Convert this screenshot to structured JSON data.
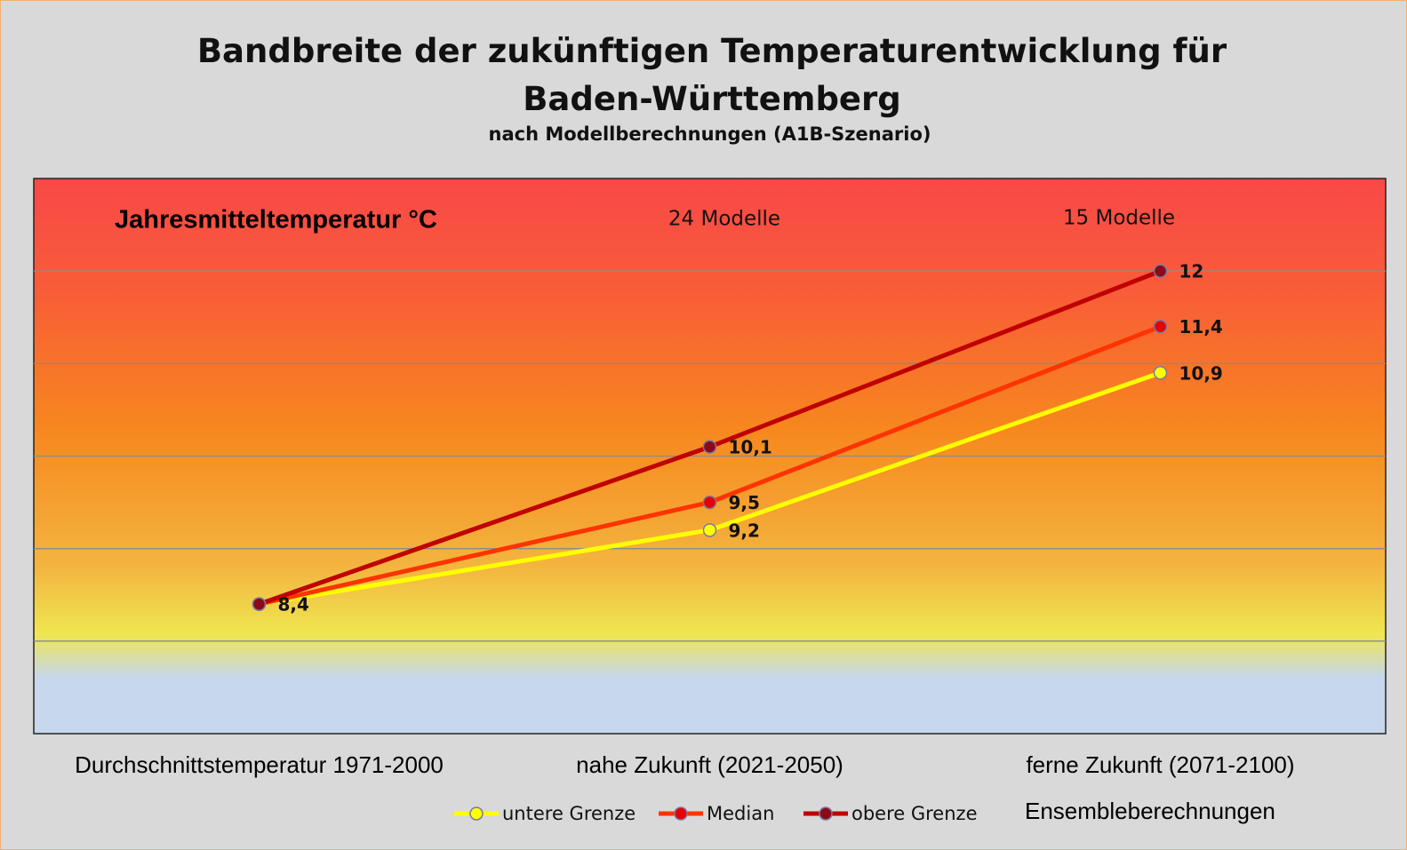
{
  "chart_data": {
    "type": "line",
    "title": "Bandbreite der zukünftigen Temperaturentwicklung für Baden-Württemberg",
    "subtitle": "nach Modellberechnungen (A1B-Szenario)",
    "y_label": "Jahresmitteltemperatur °C",
    "annotations": [
      "24 Modelle",
      "15 Modelle"
    ],
    "legend_note": "Ensembleberechnungen",
    "categories": [
      "Durchschnittstemperatur 1971-2000",
      "nahe Zukunft (2021-2050)",
      "ferne Zukunft (2071-2100)"
    ],
    "series": [
      {
        "name": "untere Grenze",
        "color": "#ffff00",
        "marker_color": "#ffff00",
        "values": [
          8.4,
          9.2,
          10.9
        ],
        "value_labels": [
          "8,4",
          "9,2",
          "10,9"
        ]
      },
      {
        "name": "Median",
        "color": "#ff3300",
        "marker_color": "#e60000",
        "values": [
          8.4,
          9.5,
          11.4
        ],
        "value_labels": [
          null,
          "9,5",
          "11,4"
        ]
      },
      {
        "name": "obere Grenze",
        "color": "#c00000",
        "marker_color": "#8b0a1a",
        "values": [
          8.4,
          10.1,
          12
        ],
        "value_labels": [
          null,
          "10,1",
          "12"
        ]
      }
    ],
    "ylim": [
      7,
      13
    ],
    "yticks": [
      8,
      9,
      10,
      11,
      12
    ],
    "grid": true
  }
}
